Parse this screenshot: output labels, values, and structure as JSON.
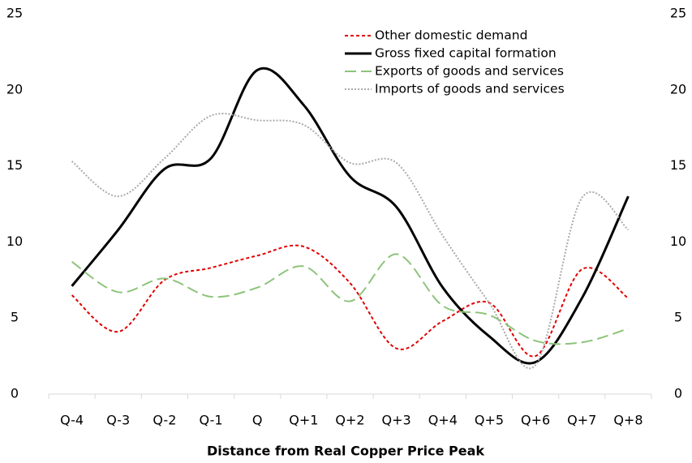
{
  "chart_data": {
    "type": "line",
    "x_label": "Distance from Real Copper Price Peak",
    "categories": [
      "Q-4",
      "Q-3",
      "Q-2",
      "Q-1",
      "Q",
      "Q+1",
      "Q+2",
      "Q+3",
      "Q+4",
      "Q+5",
      "Q+6",
      "Q+7",
      "Q+8"
    ],
    "series": [
      {
        "name": "Other domestic demand",
        "color": "#e00000",
        "style": "dashed",
        "values": [
          6.5,
          4.1,
          7.5,
          8.3,
          9.1,
          9.7,
          7.3,
          3.0,
          4.8,
          6.0,
          2.5,
          8.2,
          6.3
        ]
      },
      {
        "name": "Gross fixed capital formation",
        "color": "#000000",
        "style": "solid",
        "values": [
          7.1,
          10.8,
          14.8,
          15.5,
          21.3,
          19.0,
          14.3,
          12.3,
          7.0,
          3.8,
          2.1,
          6.3,
          13.0
        ]
      },
      {
        "name": "Exports of goods and services",
        "color": "#8cc47a",
        "style": "longdash",
        "values": [
          8.7,
          6.7,
          7.6,
          6.4,
          7.0,
          8.4,
          6.1,
          9.2,
          5.8,
          5.2,
          3.5,
          3.4,
          4.3
        ]
      },
      {
        "name": "Imports of goods and services",
        "color": "#aaaaaa",
        "style": "dotted",
        "values": [
          15.3,
          13.0,
          15.5,
          18.3,
          18.0,
          17.7,
          15.2,
          15.2,
          10.4,
          6.0,
          1.9,
          12.9,
          10.8
        ]
      }
    ],
    "ylim": [
      0,
      25
    ],
    "yticks": [
      0,
      5,
      10,
      15,
      20,
      25
    ],
    "y2lim": [
      0,
      25
    ],
    "y2ticks": [
      0,
      5,
      10,
      15,
      20,
      25
    ],
    "smooth": true,
    "grid": false,
    "legend": "upper right"
  }
}
